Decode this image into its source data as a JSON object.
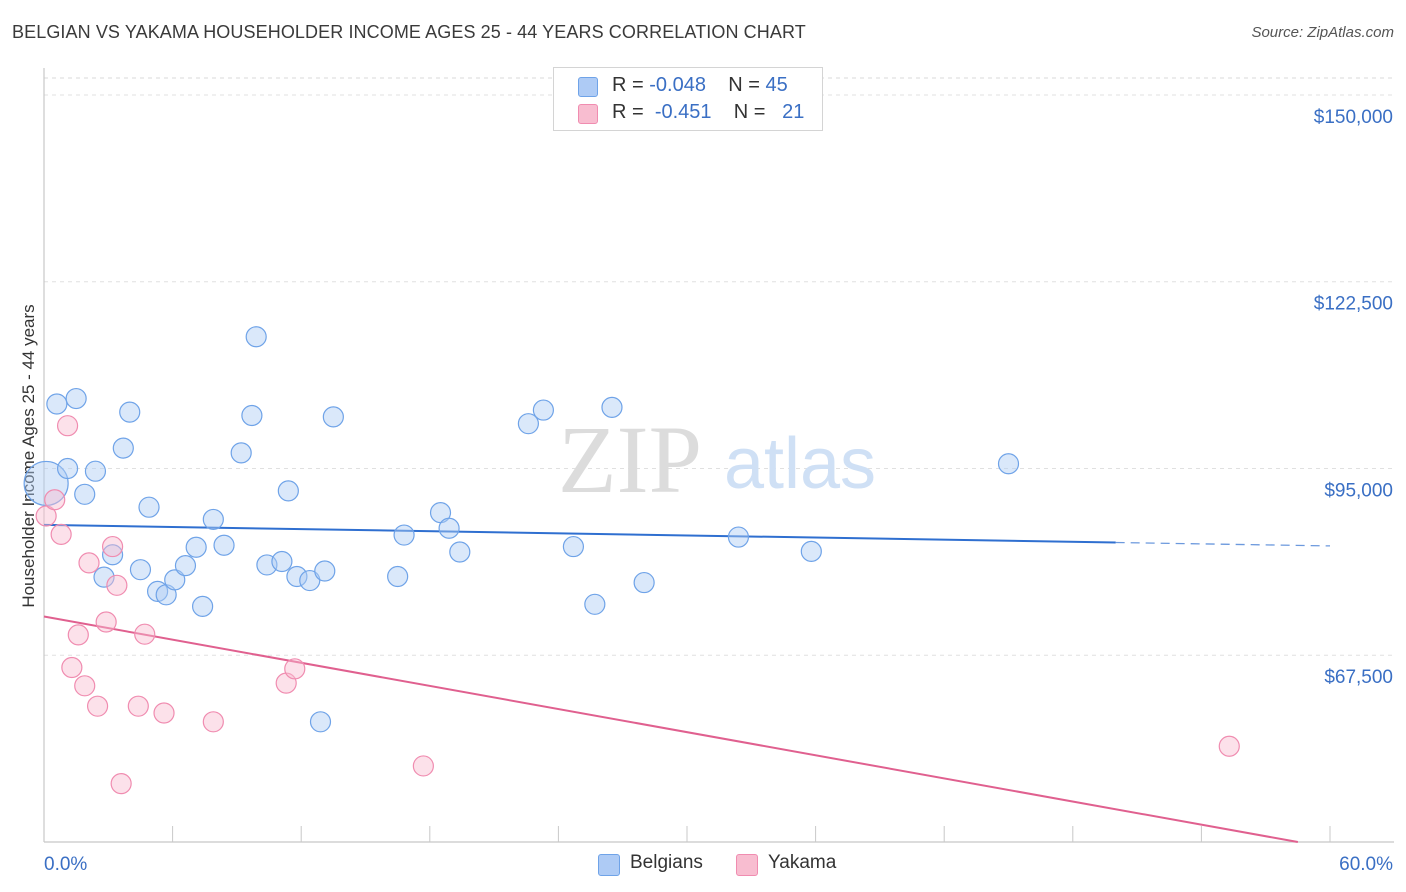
{
  "header": {
    "title": "BELGIAN VS YAKAMA HOUSEHOLDER INCOME AGES 25 - 44 YEARS CORRELATION CHART",
    "source": "Source: ZipAtlas.com"
  },
  "watermark": {
    "zip": "ZIP",
    "atlas": "atlas"
  },
  "legend": {
    "rows": [
      {
        "r_label": "R =",
        "r_value": "-0.048",
        "n_label": "N =",
        "n_value": "45",
        "color": "#aecbf5"
      },
      {
        "r_label": "R =",
        "r_value": "-0.451",
        "n_label": "N =",
        "n_value": "21",
        "color": "#f8bdd0"
      }
    ]
  },
  "bottom_legend": [
    {
      "label": "Belgians",
      "color": "#aecbf5"
    },
    {
      "label": "Yakama",
      "color": "#f8bdd0"
    }
  ],
  "chart_data": {
    "type": "scatter",
    "title": "BELGIAN VS YAKAMA HOUSEHOLDER INCOME AGES 25 - 44 YEARS CORRELATION CHART",
    "ylabel": "Householder Income Ages 25 - 44 years",
    "xlabel": "",
    "xlim": [
      0,
      60
    ],
    "ylim": [
      40000,
      152500
    ],
    "x_tick_labels": [
      "0.0%",
      "60.0%"
    ],
    "y_ticks": [
      150000,
      122500,
      95000,
      67500
    ],
    "y_tick_labels": [
      "$150,000",
      "$122,500",
      "$95,000",
      "$67,500"
    ],
    "grid": true,
    "colors": {
      "belgians": "#6fa3e8",
      "yakama": "#f08cb0",
      "belgians_line": "#2f6fd0",
      "yakama_line": "#e0608f",
      "tick_label": "#3a6fc4"
    },
    "series": [
      {
        "name": "Belgians",
        "trend": {
          "x0": 0,
          "y0": 86700,
          "x1": 50,
          "y1": 84100,
          "dash_to_x": 60,
          "dash_to_y": 83600
        },
        "points": [
          [
            0.1,
            92800,
            22
          ],
          [
            0.6,
            104500,
            10
          ],
          [
            1.1,
            95000,
            10
          ],
          [
            1.5,
            105300,
            10
          ],
          [
            1.9,
            91200,
            10
          ],
          [
            2.4,
            94600,
            10
          ],
          [
            2.8,
            79000,
            10
          ],
          [
            3.2,
            82300,
            10
          ],
          [
            3.7,
            98000,
            10
          ],
          [
            4.0,
            103300,
            10
          ],
          [
            4.5,
            80100,
            10
          ],
          [
            4.9,
            89300,
            10
          ],
          [
            5.3,
            76900,
            10
          ],
          [
            5.7,
            76400,
            10
          ],
          [
            6.1,
            78600,
            10
          ],
          [
            6.6,
            80700,
            10
          ],
          [
            7.1,
            83400,
            10
          ],
          [
            7.4,
            74700,
            10
          ],
          [
            7.9,
            87500,
            10
          ],
          [
            8.4,
            83700,
            10
          ],
          [
            9.2,
            97300,
            10
          ],
          [
            9.7,
            102800,
            10
          ],
          [
            9.9,
            114400,
            10
          ],
          [
            10.4,
            80800,
            10
          ],
          [
            11.1,
            81300,
            10
          ],
          [
            11.4,
            91700,
            10
          ],
          [
            11.8,
            79100,
            10
          ],
          [
            12.4,
            78500,
            10
          ],
          [
            13.1,
            79900,
            10
          ],
          [
            13.5,
            102600,
            10
          ],
          [
            12.9,
            57700,
            10
          ],
          [
            16.5,
            79100,
            10
          ],
          [
            16.8,
            85200,
            10
          ],
          [
            18.5,
            88500,
            10
          ],
          [
            18.9,
            86200,
            10
          ],
          [
            19.4,
            82700,
            10
          ],
          [
            22.6,
            101600,
            10
          ],
          [
            23.3,
            103600,
            10
          ],
          [
            24.7,
            83500,
            10
          ],
          [
            25.7,
            75000,
            10
          ],
          [
            26.5,
            104000,
            10
          ],
          [
            28.0,
            78200,
            10
          ],
          [
            32.4,
            84900,
            10
          ],
          [
            35.8,
            82800,
            10
          ],
          [
            45.0,
            95700,
            10
          ]
        ]
      },
      {
        "name": "Yakama",
        "trend": {
          "x0": 0,
          "y0": 73200,
          "x1": 58.5,
          "y1": 40000
        },
        "points": [
          [
            0.1,
            88000,
            10
          ],
          [
            0.5,
            90400,
            10
          ],
          [
            0.8,
            85300,
            10
          ],
          [
            1.1,
            101300,
            10
          ],
          [
            1.3,
            65700,
            10
          ],
          [
            1.6,
            70500,
            10
          ],
          [
            1.9,
            63000,
            10
          ],
          [
            2.1,
            81100,
            10
          ],
          [
            2.5,
            60000,
            10
          ],
          [
            2.9,
            72400,
            10
          ],
          [
            3.2,
            83500,
            10
          ],
          [
            3.4,
            77800,
            10
          ],
          [
            3.6,
            48600,
            10
          ],
          [
            4.4,
            60000,
            10
          ],
          [
            4.7,
            70600,
            10
          ],
          [
            5.6,
            59000,
            10
          ],
          [
            7.9,
            57700,
            10
          ],
          [
            11.3,
            63400,
            10
          ],
          [
            11.7,
            65500,
            10
          ],
          [
            17.7,
            51200,
            10
          ],
          [
            55.3,
            54100,
            10
          ]
        ]
      }
    ]
  }
}
